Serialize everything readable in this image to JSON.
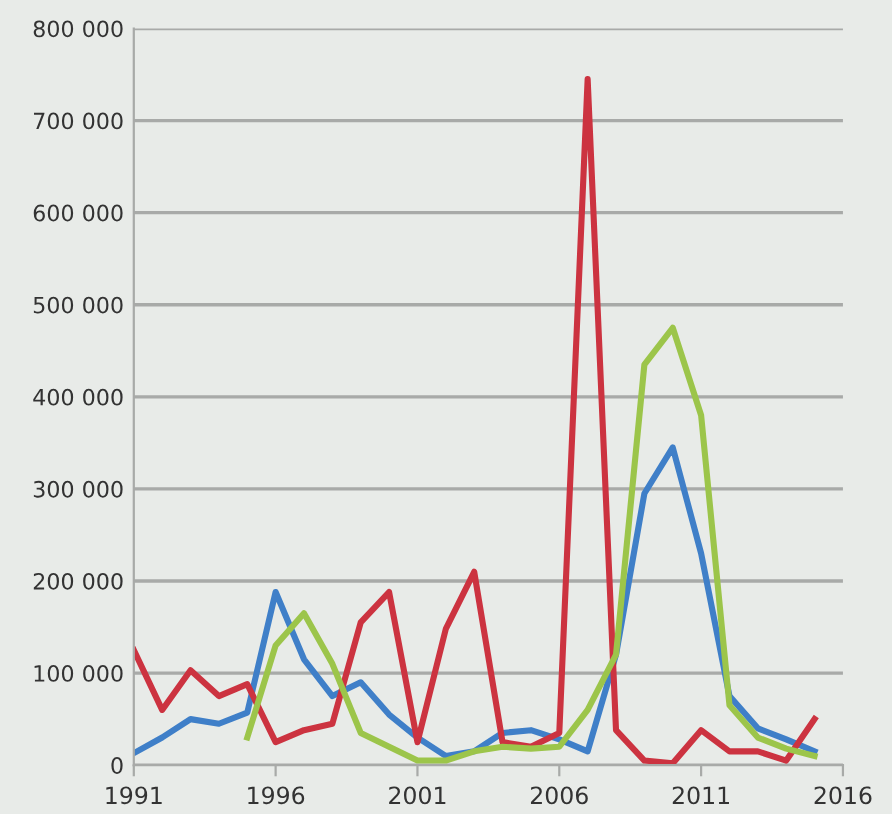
{
  "chart_data": {
    "type": "line",
    "x": [
      1991,
      1992,
      1993,
      1994,
      1995,
      1996,
      1997,
      1998,
      1999,
      2000,
      2001,
      2002,
      2003,
      2004,
      2005,
      2006,
      2007,
      2008,
      2009,
      2010,
      2011,
      2012,
      2013,
      2014,
      2015
    ],
    "series": [
      {
        "color": "#3f7fc8",
        "values": [
          13000,
          30000,
          50000,
          45000,
          57000,
          188000,
          115000,
          75000,
          90000,
          55000,
          30000,
          10000,
          15000,
          35000,
          38000,
          28000,
          15000,
          120000,
          295000,
          345000,
          230000,
          75000,
          40000,
          28000,
          15000
        ]
      },
      {
        "color": "#cc3340",
        "values": [
          125000,
          60000,
          103000,
          75000,
          88000,
          25000,
          38000,
          45000,
          155000,
          188000,
          25000,
          148000,
          210000,
          25000,
          20000,
          35000,
          745000,
          38000,
          5000,
          2000,
          38000,
          15000,
          15000,
          5000,
          50000
        ]
      },
      {
        "color": "#9cc54a",
        "values": [
          null,
          null,
          null,
          null,
          30000,
          130000,
          165000,
          110000,
          35000,
          20000,
          5000,
          5000,
          15000,
          20000,
          18000,
          20000,
          60000,
          120000,
          435000,
          475000,
          380000,
          65000,
          30000,
          18000,
          10000
        ]
      }
    ],
    "xlim": [
      1991,
      2016
    ],
    "xticks": [
      1991,
      1996,
      2001,
      2006,
      2011,
      2016
    ],
    "ylim": [
      0,
      800000
    ],
    "yticks": [
      {
        "value": 0,
        "label": "0"
      },
      {
        "value": 100000,
        "label": "100 000"
      },
      {
        "value": 200000,
        "label": "200 000"
      },
      {
        "value": 300000,
        "label": "300 000"
      },
      {
        "value": 400000,
        "label": "400 000"
      },
      {
        "value": 500000,
        "label": "500 000"
      },
      {
        "value": 600000,
        "label": "600 000"
      },
      {
        "value": 700000,
        "label": "700 000"
      },
      {
        "value": 800000,
        "label": "800 000"
      }
    ],
    "grid": "y",
    "legend": false,
    "marker": "none",
    "line_style": "solid"
  }
}
